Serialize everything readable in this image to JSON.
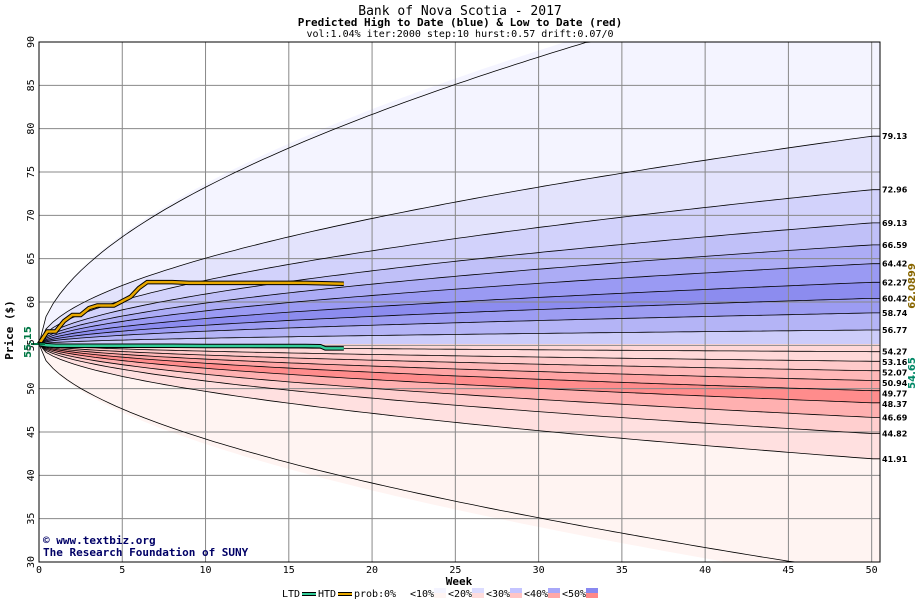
{
  "chart_data": {
    "type": "area",
    "title": "Bank of Nova Scotia - 2017",
    "subtitle": "Predicted High to Date (blue) &  Low to Date (red)",
    "params": "vol:1.04% iter:2000 step:10 hurst:0.57 drift:0.07/0",
    "xlabel": "Week",
    "ylabel": "Price ($)",
    "xlim": [
      0,
      50.5
    ],
    "ylim": [
      30,
      90
    ],
    "x_ticks": [
      0,
      5,
      10,
      15,
      20,
      25,
      30,
      35,
      40,
      45,
      50
    ],
    "y_ticks": [
      30,
      35,
      40,
      45,
      50,
      55,
      60,
      65,
      70,
      75,
      80,
      85,
      90
    ],
    "grid": true,
    "start_price": 55.15,
    "start_label": "55.15",
    "right_labels": {
      "htd_now": "62.0899",
      "ltd_now": "54.65"
    },
    "colors": {
      "htd": "#e8a800",
      "ltd": "#33cc99",
      "start_marker": "#007744",
      "htd_value": "#886600",
      "ltd_value": "#008866"
    },
    "high_quantile_endpoints": [
      79.13,
      72.96,
      69.13,
      66.59,
      64.42,
      62.27,
      60.42,
      58.74,
      56.77,
      54.27
    ],
    "low_quantile_endpoints": [
      53.16,
      52.07,
      50.94,
      49.77,
      48.37,
      46.69,
      44.82,
      41.91
    ],
    "end_labels": [
      "79.13",
      "72.96",
      "69.13",
      "66.59",
      "64.42",
      "62.27",
      "60.42",
      "58.74",
      "56.77",
      "54.27",
      "53.16",
      "52.07",
      "50.94",
      "49.77",
      "48.37",
      "46.69",
      "44.82",
      "41.91"
    ],
    "htd_series": {
      "name": "HTD",
      "x": [
        0,
        0.5,
        1,
        1.5,
        2,
        2.5,
        3,
        3.5,
        4,
        4.5,
        5,
        5.5,
        6,
        6.5,
        7,
        8,
        9,
        10,
        12,
        14,
        16,
        18.3
      ],
      "y": [
        55.15,
        56.6,
        56.6,
        57.8,
        58.5,
        58.5,
        59.3,
        59.6,
        59.6,
        59.6,
        60.1,
        60.6,
        61.6,
        62.3,
        62.3,
        62.3,
        62.2,
        62.2,
        62.2,
        62.2,
        62.2,
        62.1
      ]
    },
    "ltd_series": {
      "name": "LTD",
      "x": [
        0,
        0.5,
        1,
        2,
        4,
        6,
        8,
        10,
        12,
        14,
        16,
        16.9,
        17.2,
        18.3
      ],
      "y": [
        55.15,
        55.0,
        54.95,
        54.95,
        54.95,
        54.95,
        54.95,
        54.92,
        54.92,
        54.92,
        54.92,
        54.9,
        54.65,
        54.65
      ]
    },
    "legend": {
      "lines": [
        {
          "name": "LTD",
          "color": "#33cc99"
        },
        {
          "name": "HTD",
          "color": "#e8a800"
        }
      ],
      "prob_label": "prob:",
      "prob_levels": [
        {
          "label": "0%",
          "color": "#ffffff"
        },
        {
          "label": "<10%",
          "color": "#f4f4ff"
        },
        {
          "label": "<20%",
          "color": "#dcdcff"
        },
        {
          "label": "<30%",
          "color": "#c4c4ff"
        },
        {
          "label": "<40%",
          "color": "#a8a8f8"
        },
        {
          "label": "<50%",
          "color": "#8888f0"
        }
      ],
      "prob_low_colors": [
        "#fff4f2",
        "#ffdcdc",
        "#ffc4c4",
        "#ffa8a8",
        "#ff8888"
      ]
    }
  },
  "credits": {
    "website": "www.textbiz.org",
    "org": "The Research Foundation of SUNY"
  }
}
